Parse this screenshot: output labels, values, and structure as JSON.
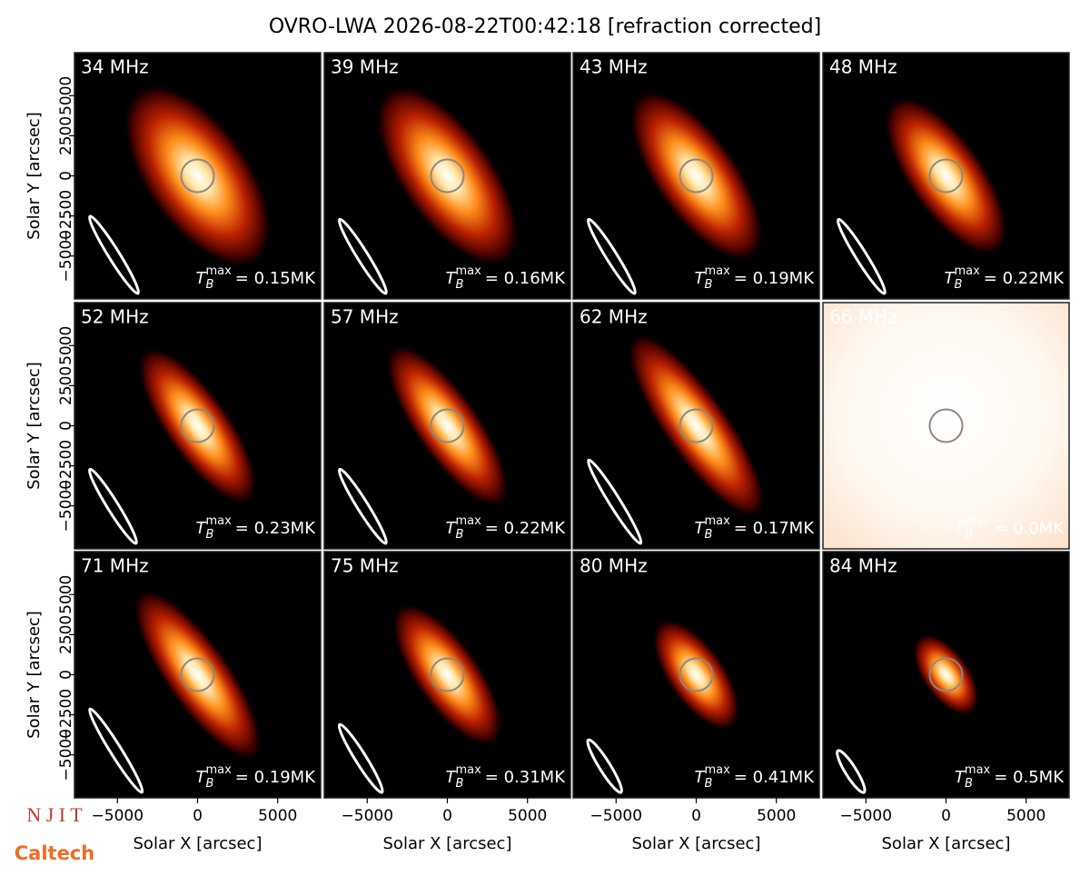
{
  "title": "OVRO-LWA 2026-08-22T00:42:18 [refraction corrected]",
  "xlabel": "Solar X [arcsec]",
  "ylabel": "Solar Y [arcsec]",
  "xlim": [
    -7680,
    7680
  ],
  "ylim": [
    -7680,
    7680
  ],
  "xticks": [
    {
      "value": -5000,
      "label": "−5000"
    },
    0,
    5000
  ],
  "yticks": [
    {
      "value": -5000,
      "label": "−5000"
    },
    {
      "value": -2500,
      "label": "−2500"
    },
    0,
    2500,
    5000
  ],
  "tb_symbol": {
    "base": "T",
    "sub": "B",
    "sup": "max"
  },
  "logos": [
    "N J I T",
    "Caltech"
  ],
  "chart_data": [
    {
      "type": "image",
      "label": "34 MHz",
      "peak": "= 0.15MK"
    },
    {
      "type": "image",
      "label": "39 MHz",
      "peak": "= 0.16MK"
    },
    {
      "type": "image",
      "label": "43 MHz",
      "peak": "= 0.19MK"
    },
    {
      "type": "image",
      "label": "48 MHz",
      "peak": "= 0.22MK"
    },
    {
      "type": "image",
      "label": "52 MHz",
      "peak": "= 0.23MK"
    },
    {
      "type": "image",
      "label": "57 MHz",
      "peak": "= 0.22MK"
    },
    {
      "type": "image",
      "label": "62 MHz",
      "peak": "= 0.17MK"
    },
    {
      "type": "image",
      "label": "66 MHz",
      "peak": "= 0.0MK"
    },
    {
      "type": "image",
      "label": "71 MHz",
      "peak": "= 0.19MK"
    },
    {
      "type": "image",
      "label": "75 MHz",
      "peak": "= 0.31MK"
    },
    {
      "type": "image",
      "label": "80 MHz",
      "peak": "= 0.41MK"
    },
    {
      "type": "image",
      "label": "84 MHz",
      "peak": "= 0.5MK"
    }
  ]
}
